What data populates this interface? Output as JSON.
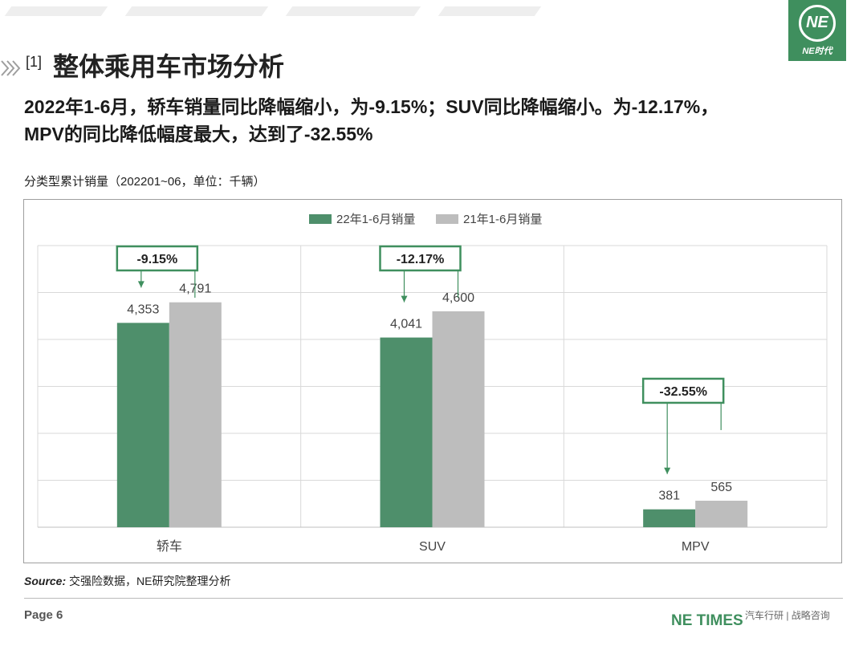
{
  "header": {
    "section_num": "[1]",
    "title": "整体乘用车市场分析",
    "logo_mark": "NE",
    "logo_text": "NE时代"
  },
  "headline": {
    "line1": "2022年1-6月，轿车销量同比降幅缩小，为-9.15%；SUV同比降幅缩小。为-12.17%，",
    "line2": "MPV的同比降低幅度最大，达到了-32.55%"
  },
  "subtitle": "分类型累计销量（202201~06，单位：千辆）",
  "chart_data": {
    "type": "bar",
    "categories": [
      "轿车",
      "SUV",
      "MPV"
    ],
    "series": [
      {
        "name": "22年1-6月销量",
        "values": [
          4353,
          4041,
          381
        ],
        "labels": [
          "4,353",
          "4,041",
          "381"
        ],
        "color": "#4e8f6b"
      },
      {
        "name": "21年1-6月销量",
        "values": [
          4791,
          4600,
          565
        ],
        "labels": [
          "4,791",
          "4,600",
          "565"
        ],
        "color": "#bdbdbd"
      }
    ],
    "ylim": [
      0,
      6000
    ],
    "yticks": [
      0,
      1000,
      2000,
      3000,
      4000,
      5000,
      6000
    ],
    "grid": true,
    "legend": "top-center",
    "annotations": [
      "-9.15%",
      "-12.17%",
      "-32.55%"
    ],
    "annotation_color": "#3f8f5e"
  },
  "footer": {
    "source_label": "Source:",
    "source_text": " 交强险数据，NE研究院整理分析",
    "page": "Page 6",
    "brand": "NE TIMES",
    "wechat": "汽车行研 | 战略咨询"
  }
}
